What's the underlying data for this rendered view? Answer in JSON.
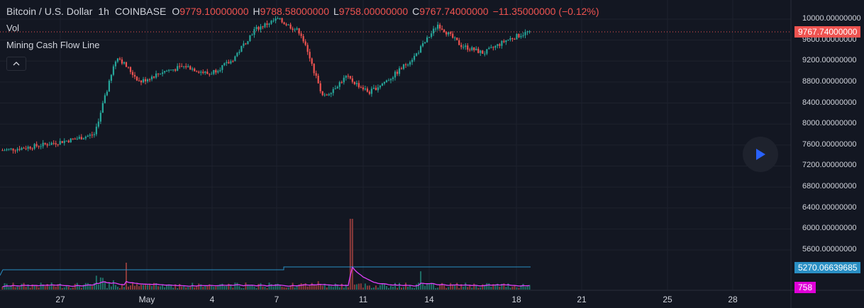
{
  "header": {
    "symbol": "Bitcoin / U.S. Dollar",
    "interval": "1h",
    "exchange": "COINBASE",
    "o_label": "O",
    "o": "9779.10000000",
    "h_label": "H",
    "h": "9788.58000000",
    "l_label": "L",
    "l": "9758.00000000",
    "c_label": "C",
    "c": "9767.74000000",
    "change": "−11.35000000 (−0.12%)"
  },
  "indicators": {
    "vol": "Vol",
    "mining": "Mining Cash Flow Line"
  },
  "price_scale": {
    "ticks": [
      "10000.00000000",
      "9600.00000000",
      "9200.00000000",
      "8800.00000000",
      "8400.00000000",
      "8000.00000000",
      "7600.00000000",
      "7200.00000000",
      "6800.00000000",
      "6400.00000000",
      "6000.00000000",
      "5600.00000000"
    ],
    "last_price": "9767.74000000",
    "indicator_value": "5270.06639685",
    "volume_value": "758"
  },
  "time_scale": [
    "27",
    "May",
    "4",
    "7",
    "11",
    "14",
    "18",
    "21",
    "25",
    "28"
  ],
  "colors": {
    "up": "#26a69a",
    "down": "#ef5350",
    "background": "#131722",
    "indicator": "#2a8fc4",
    "vol_ma": "#e040fb",
    "play": "#2962ff"
  },
  "chart_data": {
    "type": "candlestick",
    "symbol": "Bitcoin / U.S. Dollar",
    "interval": "1h",
    "y_range": [
      5200,
      10200
    ],
    "x_ticks": [
      "27",
      "May",
      "4",
      "7",
      "11",
      "14",
      "18",
      "21",
      "25",
      "28"
    ],
    "approx_close_path": [
      7500,
      7550,
      7620,
      7700,
      7800,
      9300,
      8800,
      9000,
      9100,
      8950,
      9200,
      9800,
      10000,
      9750,
      8500,
      8900,
      8600,
      8900,
      9300,
      9900,
      9500,
      9350,
      9600,
      9767.74
    ],
    "last": {
      "open": 9779.1,
      "high": 9788.58,
      "low": 9758.0,
      "close": 9767.74,
      "change": -11.35,
      "change_pct": -0.12
    },
    "mining_cash_flow_line": 5270.06639685,
    "last_volume": 758
  }
}
